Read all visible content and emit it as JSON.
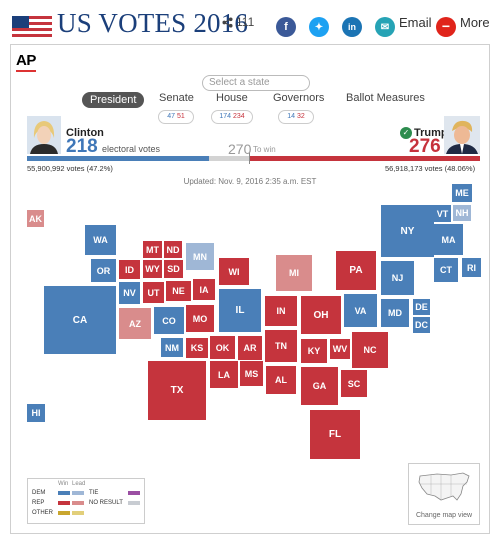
{
  "header": {
    "title": "US VOTES 2016",
    "share_count": "111",
    "email_label": "Email",
    "more_label": "More",
    "colors": {
      "title": "#1b3f7a",
      "facebook": "#3b5998",
      "twitter": "#1da1f2",
      "linkedin": "#1b74b4",
      "email": "#26a3b5",
      "more": "#e0241b"
    }
  },
  "brand": {
    "logo": "AP"
  },
  "search": {
    "placeholder": "Select a state"
  },
  "tabs": [
    {
      "label": "President",
      "active": true
    },
    {
      "label": "Senate",
      "dem": "47",
      "rep": "51"
    },
    {
      "label": "House",
      "dem": "174",
      "rep": "234"
    },
    {
      "label": "Governors",
      "dem": "14",
      "rep": "32"
    },
    {
      "label": "Ballot Measures"
    }
  ],
  "race": {
    "dem": {
      "name": "Clinton",
      "electoral": "218",
      "popular": "55,900,992 votes (47.2%)"
    },
    "rep": {
      "name": "Trump",
      "electoral": "276",
      "popular": "56,918,173 votes (48.06%)"
    },
    "electoral_label": "electoral votes",
    "to_win_number": "270",
    "to_win_label": "To win"
  },
  "updated": "Updated: Nov. 9, 2016 2:35 a.m. EST",
  "map": {
    "states": [
      {
        "abbr": "AK",
        "status": "rep-lead"
      },
      {
        "abbr": "HI",
        "status": "dem-win"
      },
      {
        "abbr": "WA",
        "status": "dem-win"
      },
      {
        "abbr": "OR",
        "status": "dem-win"
      },
      {
        "abbr": "CA",
        "status": "dem-win"
      },
      {
        "abbr": "NV",
        "status": "dem-win"
      },
      {
        "abbr": "ID",
        "status": "rep-win"
      },
      {
        "abbr": "MT",
        "status": "rep-win"
      },
      {
        "abbr": "WY",
        "status": "rep-win"
      },
      {
        "abbr": "UT",
        "status": "rep-win"
      },
      {
        "abbr": "AZ",
        "status": "rep-lead"
      },
      {
        "abbr": "ND",
        "status": "rep-win"
      },
      {
        "abbr": "SD",
        "status": "rep-win"
      },
      {
        "abbr": "NE",
        "status": "rep-win"
      },
      {
        "abbr": "CO",
        "status": "dem-win"
      },
      {
        "abbr": "NM",
        "status": "dem-win"
      },
      {
        "abbr": "KS",
        "status": "rep-win"
      },
      {
        "abbr": "OK",
        "status": "rep-win"
      },
      {
        "abbr": "TX",
        "status": "rep-win"
      },
      {
        "abbr": "MN",
        "status": "dem-lead"
      },
      {
        "abbr": "IA",
        "status": "rep-win"
      },
      {
        "abbr": "MO",
        "status": "rep-win"
      },
      {
        "abbr": "AR",
        "status": "rep-win"
      },
      {
        "abbr": "LA",
        "status": "rep-win"
      },
      {
        "abbr": "WI",
        "status": "rep-win"
      },
      {
        "abbr": "IL",
        "status": "dem-win"
      },
      {
        "abbr": "MS",
        "status": "rep-win"
      },
      {
        "abbr": "MI",
        "status": "rep-lead"
      },
      {
        "abbr": "IN",
        "status": "rep-win"
      },
      {
        "abbr": "TN",
        "status": "rep-win"
      },
      {
        "abbr": "AL",
        "status": "rep-win"
      },
      {
        "abbr": "OH",
        "status": "rep-win"
      },
      {
        "abbr": "KY",
        "status": "rep-win"
      },
      {
        "abbr": "GA",
        "status": "rep-win"
      },
      {
        "abbr": "FL",
        "status": "rep-win"
      },
      {
        "abbr": "WV",
        "status": "rep-win"
      },
      {
        "abbr": "PA",
        "status": "rep-win"
      },
      {
        "abbr": "VA",
        "status": "dem-win"
      },
      {
        "abbr": "NC",
        "status": "rep-win"
      },
      {
        "abbr": "SC",
        "status": "rep-win"
      },
      {
        "abbr": "NY",
        "status": "dem-win"
      },
      {
        "abbr": "NJ",
        "status": "dem-win"
      },
      {
        "abbr": "MD",
        "status": "dem-win"
      },
      {
        "abbr": "DE",
        "status": "dem-win"
      },
      {
        "abbr": "DC",
        "status": "dem-win"
      },
      {
        "abbr": "VT",
        "status": "dem-win"
      },
      {
        "abbr": "NH",
        "status": "dem-lead"
      },
      {
        "abbr": "MA",
        "status": "dem-win"
      },
      {
        "abbr": "CT",
        "status": "dem-win"
      },
      {
        "abbr": "RI",
        "status": "dem-win"
      },
      {
        "abbr": "ME",
        "status": "dem-win"
      }
    ],
    "colors": {
      "dem-win": "#4a7fb8",
      "dem-lead": "#9fb7d6",
      "rep-win": "#c5343d",
      "rep-lead": "#d98c8c",
      "tie": "#9b4fa3",
      "no-result": "#c8ccd2",
      "other-win": "#c9a62e",
      "other-lead": "#e2cf7a"
    }
  },
  "legend": {
    "win_label": "Win",
    "lead_label": "Lead",
    "dem_label": "DEM",
    "rep_label": "REP",
    "other_label": "OTHER",
    "tie_label": "TIE",
    "no_result_label": "NO RESULT"
  },
  "map_view": {
    "label": "Change map view"
  }
}
